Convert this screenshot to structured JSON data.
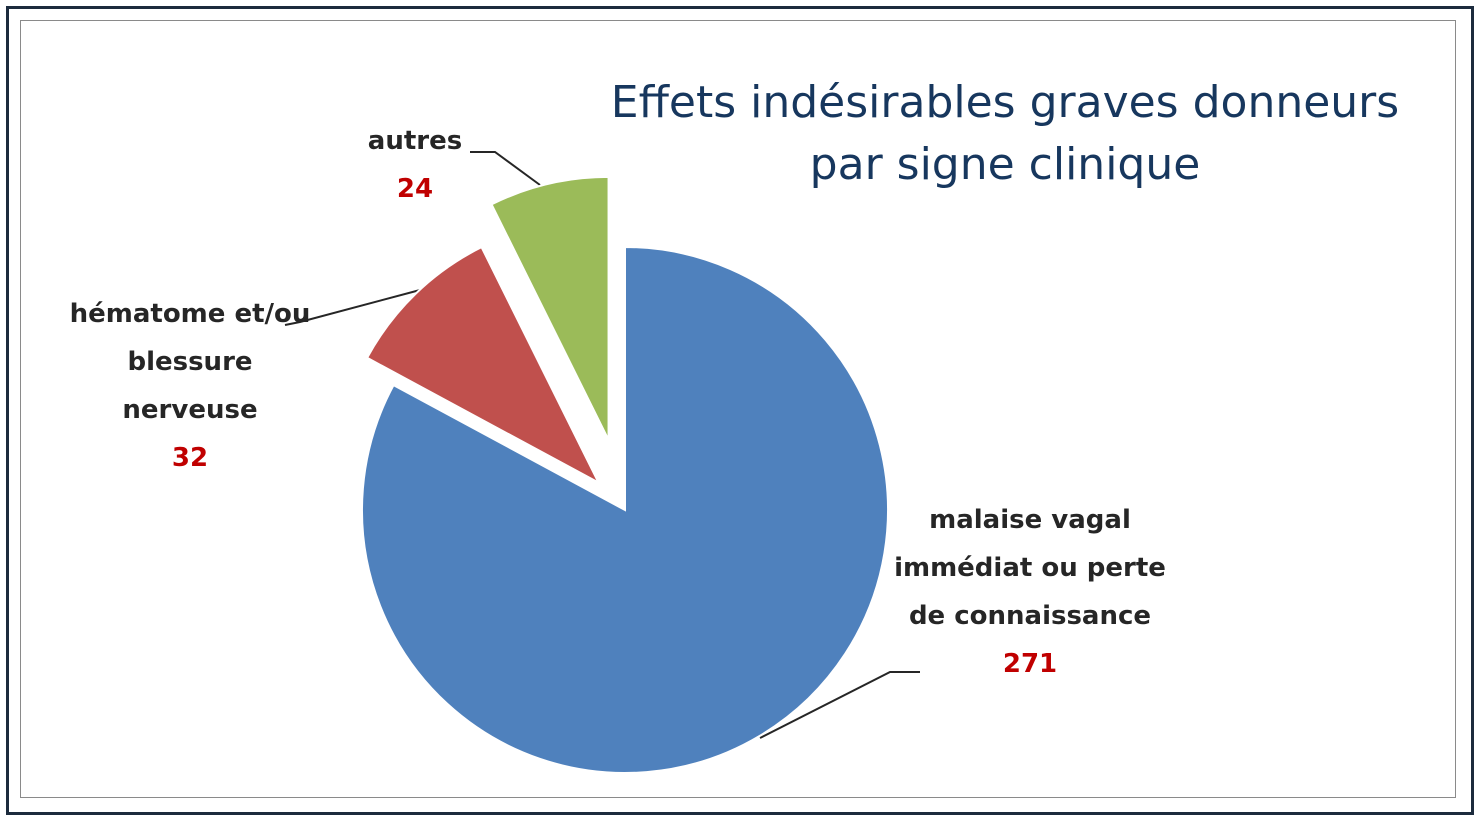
{
  "chart_data": {
    "type": "pie",
    "title": "Effets indésirables graves donneurs par signe clinique",
    "categories": [
      "malaise vagal immédiat ou perte de connaissance",
      "hématome et/ou blessure nerveuse",
      "autres"
    ],
    "values": [
      271,
      32,
      24
    ],
    "colors": [
      "#4f81bd",
      "#c0504d",
      "#9bbb59"
    ]
  }
}
